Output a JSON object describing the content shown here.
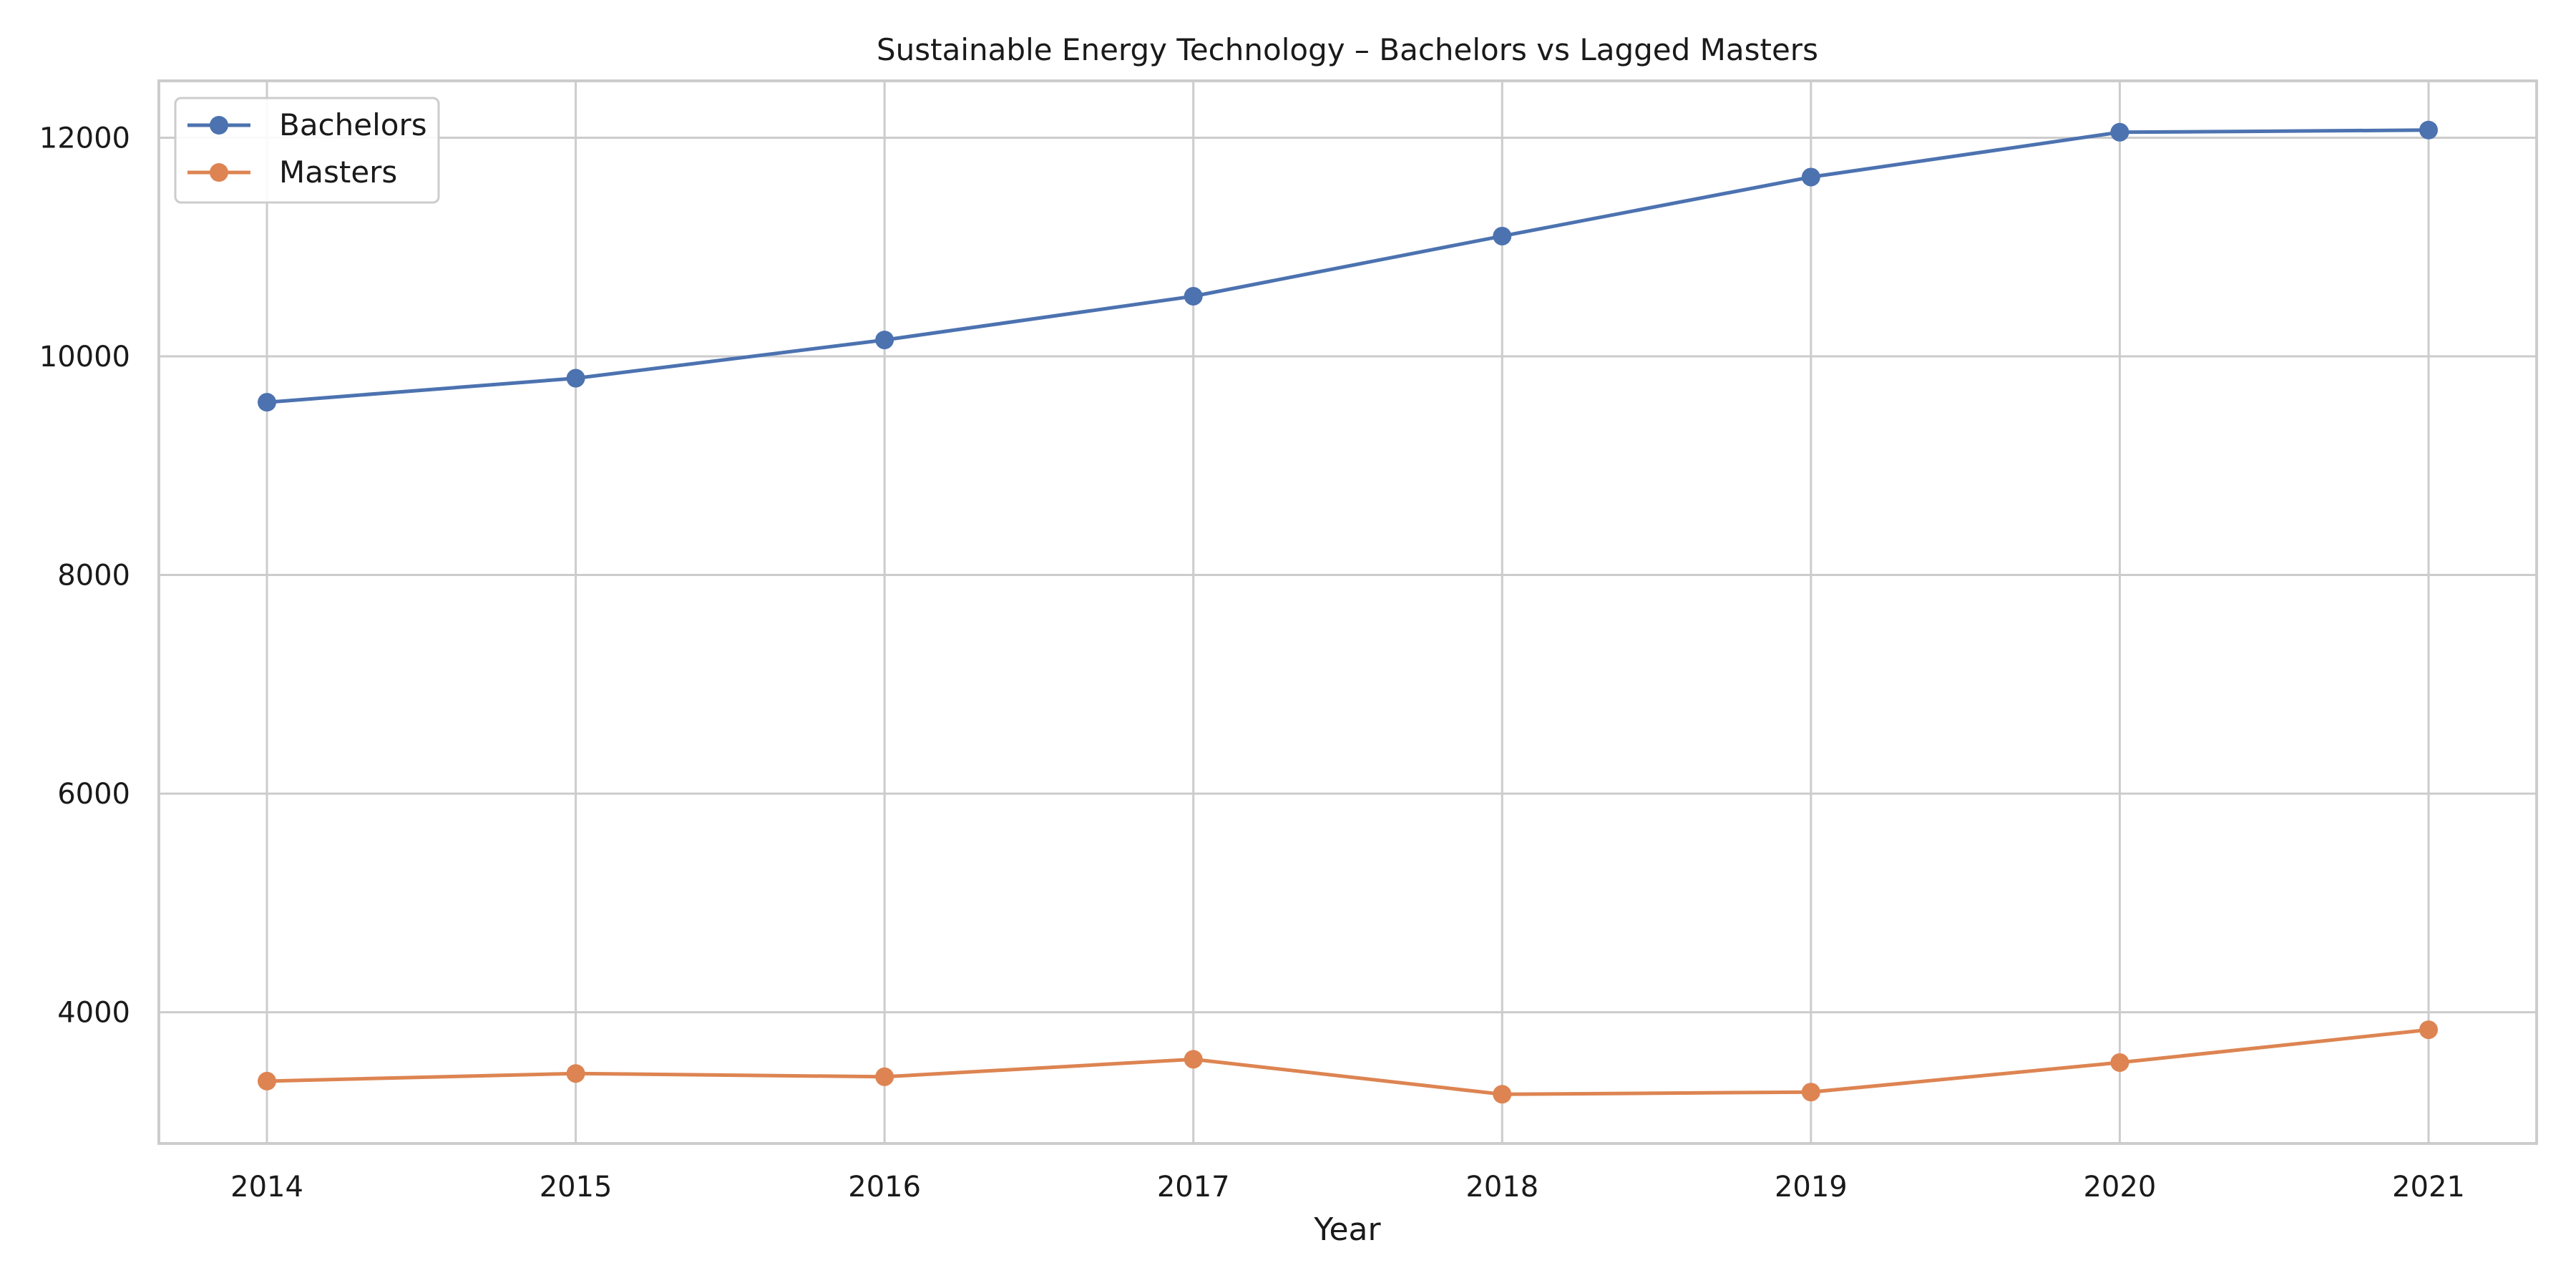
{
  "chart_data": {
    "type": "line",
    "title": "Sustainable Energy Technology – Bachelors vs Lagged Masters",
    "xlabel": "Year",
    "ylabel": "",
    "x": [
      2014,
      2015,
      2016,
      2017,
      2018,
      2019,
      2020,
      2021
    ],
    "xlim": [
      2013.65,
      2021.35
    ],
    "ylim": [
      2800,
      12520
    ],
    "xticks": [
      2014,
      2015,
      2016,
      2017,
      2018,
      2019,
      2020,
      2021
    ],
    "yticks": [
      4000,
      6000,
      8000,
      10000,
      12000
    ],
    "grid": true,
    "legend_position": "top-left",
    "series": [
      {
        "name": "Bachelors",
        "color": "#4c72b0",
        "values": [
          9580,
          9800,
          10150,
          10550,
          11100,
          11640,
          12050,
          12070
        ]
      },
      {
        "name": "Masters",
        "color": "#dd8452",
        "values": [
          3370,
          3440,
          3410,
          3570,
          3250,
          3270,
          3540,
          3840
        ]
      }
    ]
  }
}
